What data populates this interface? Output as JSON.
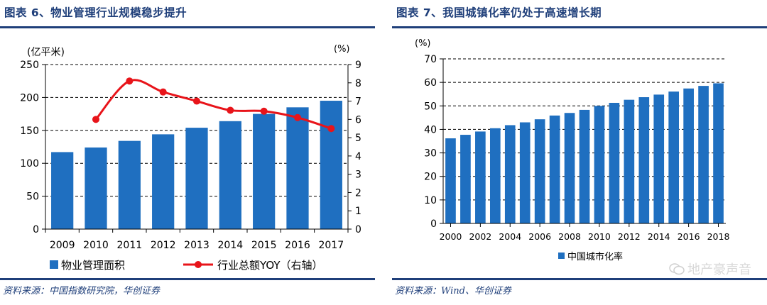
{
  "charts_meta": {
    "left": {
      "title": "图表 6、物业管理行业规模稳步提升",
      "source": "资料来源：中国指数研究院，华创证券"
    },
    "right": {
      "title": "图表 7、我国城镇化率仍处于高速增长期",
      "source": "资料来源：Wind、华创证券"
    }
  },
  "watermark": {
    "text": "地产豪声音"
  },
  "colors": {
    "bar": "#1f6fc0",
    "line": "#e8141a",
    "title": "#1f3f7a",
    "grid": "#000000"
  },
  "chart_data": [
    {
      "type": "bar",
      "categories": [
        "2009",
        "2010",
        "2011",
        "2012",
        "2013",
        "2014",
        "2015",
        "2016",
        "2017"
      ],
      "series": [
        {
          "name": "物业管理面积",
          "axis": "left",
          "type": "bar",
          "values": [
            117,
            124,
            134,
            144,
            154,
            164,
            175,
            185,
            195
          ]
        },
        {
          "name": "行业总额YOY（右轴）",
          "axis": "right",
          "type": "line",
          "values": [
            null,
            6.0,
            8.1,
            7.5,
            7.0,
            6.5,
            6.45,
            6.1,
            5.5
          ]
        }
      ],
      "ylabel": "(亿平米)",
      "ylabel_right": "(%)",
      "ylim": [
        0,
        250
      ],
      "yticks": [
        0,
        50,
        100,
        150,
        200,
        250
      ],
      "ylim_right": [
        0,
        9
      ],
      "yticks_right": [
        0,
        1,
        2,
        3,
        4,
        5,
        6,
        7,
        8,
        9
      ],
      "legend_position": "bottom"
    },
    {
      "type": "bar",
      "categories": [
        "2000",
        "2001",
        "2002",
        "2003",
        "2004",
        "2005",
        "2006",
        "2007",
        "2008",
        "2009",
        "2010",
        "2011",
        "2012",
        "2013",
        "2014",
        "2015",
        "2016",
        "2017",
        "2018"
      ],
      "xtick_labels": [
        "2000",
        "2002",
        "2004",
        "2006",
        "2008",
        "2010",
        "2012",
        "2014",
        "2016",
        "2018"
      ],
      "series": [
        {
          "name": "中国城市化率",
          "type": "bar",
          "values": [
            36.2,
            37.7,
            39.1,
            40.5,
            41.8,
            43.0,
            44.3,
            45.9,
            47.0,
            48.3,
            50.0,
            51.3,
            52.6,
            53.7,
            54.8,
            56.1,
            57.4,
            58.5,
            59.6
          ]
        }
      ],
      "ylabel": "(%)",
      "ylim": [
        0,
        70
      ],
      "yticks": [
        0,
        10,
        20,
        30,
        40,
        50,
        60,
        70
      ],
      "legend_position": "bottom"
    }
  ]
}
